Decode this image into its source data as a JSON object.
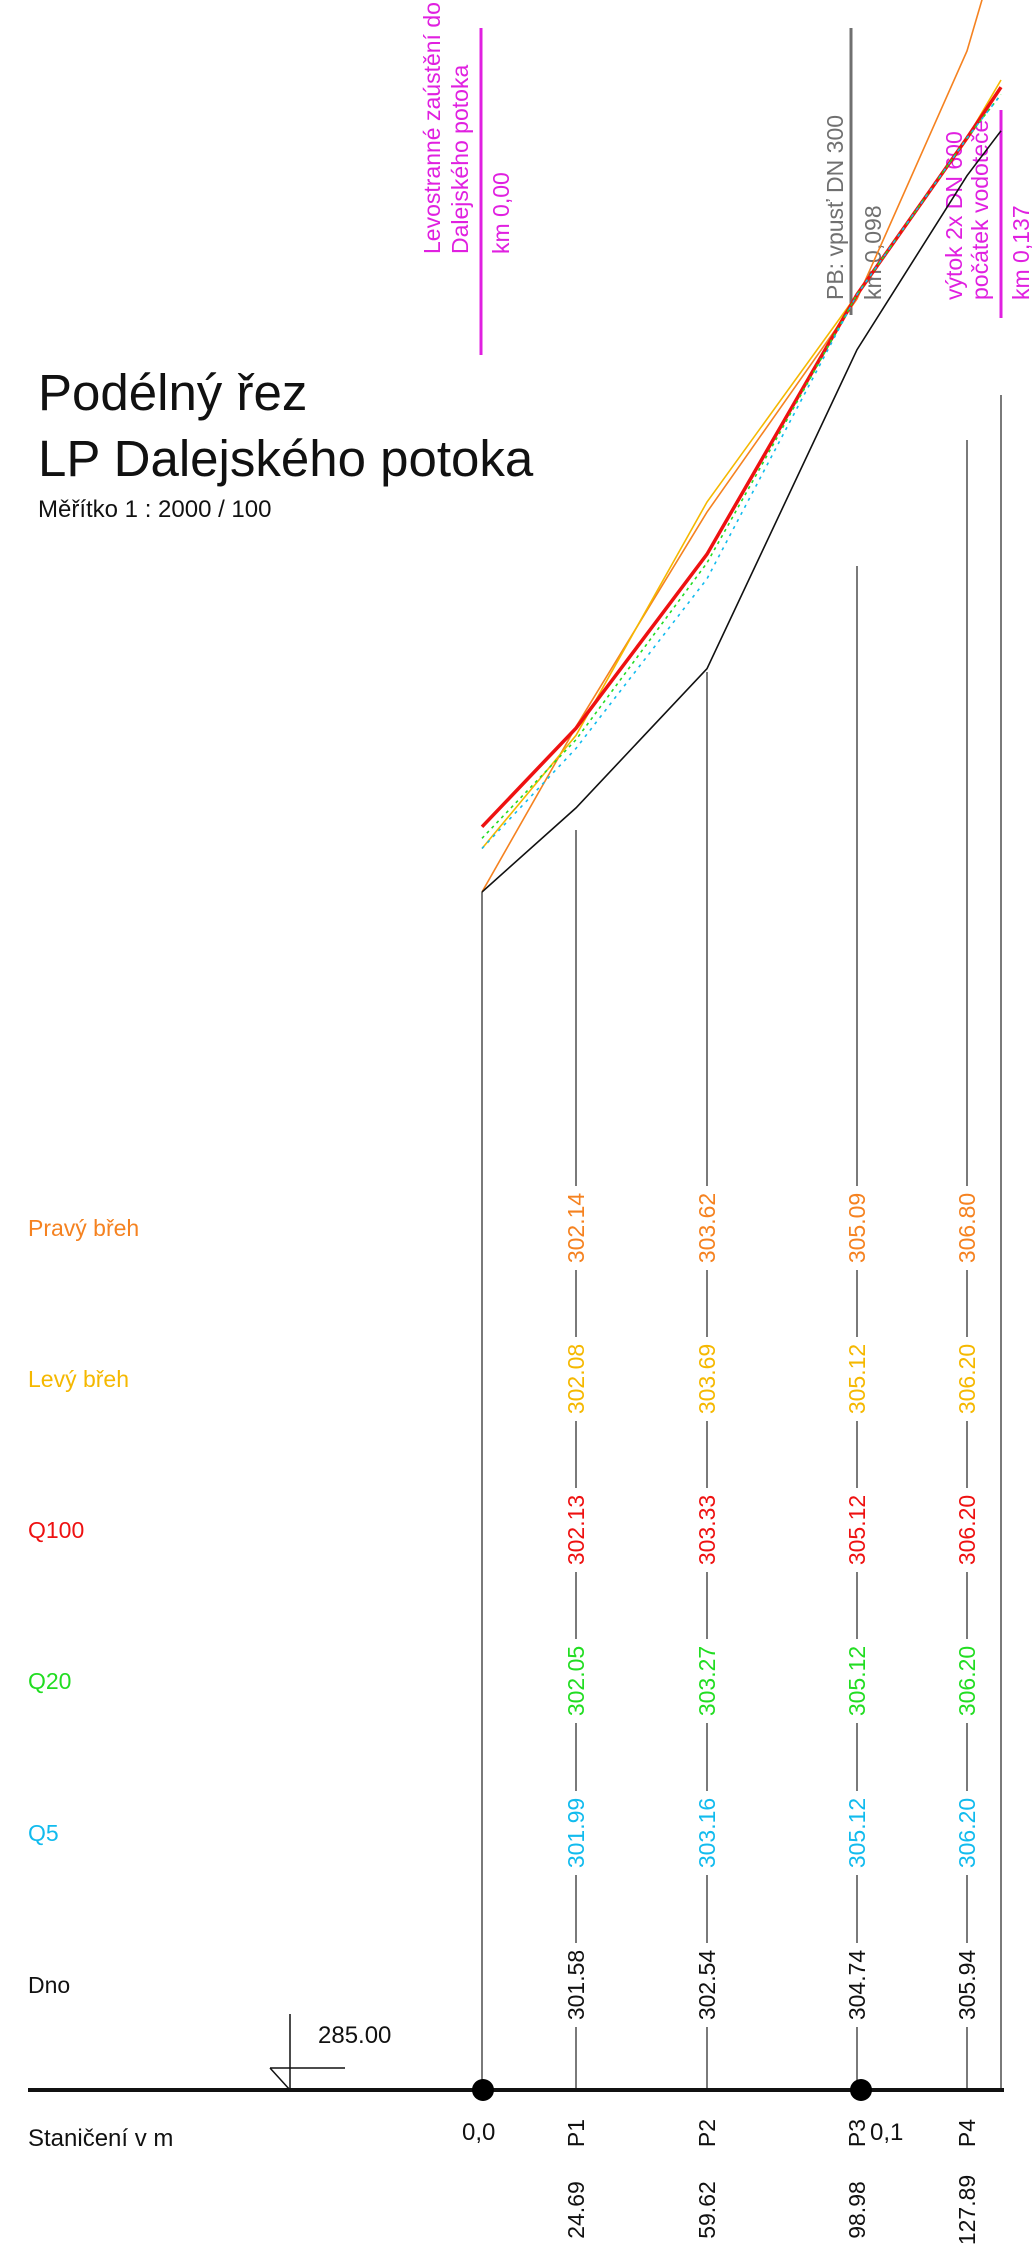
{
  "title": {
    "line1": "Podélný řez",
    "line2": "LP Dalejského potoka",
    "scale": "Měřítko 1 : 2000 / 100"
  },
  "datum": "285.00",
  "station_label": "Staničení v m",
  "stationing": {
    "start": "0,0",
    "end": "0,1"
  },
  "markers": [
    {
      "lines": [
        "Levostranné zaústění do",
        "Dalejského potoka",
        "km 0,00"
      ],
      "color": "#e020e0"
    },
    {
      "lines": [
        "PB: vpusť DN 300",
        "km 0,098"
      ],
      "color": "#707070"
    },
    {
      "lines": [
        "výtok 2x DN 600",
        "počátek vodoteče",
        "km 0,137"
      ],
      "color": "#e020e0"
    }
  ],
  "profiles": [
    {
      "name": "P1",
      "station": "24.69"
    },
    {
      "name": "P2",
      "station": "59.62"
    },
    {
      "name": "P3",
      "station": "98.98"
    },
    {
      "name": "P4",
      "station": "127.89"
    }
  ],
  "rows": [
    {
      "label": "Pravý břeh",
      "color": "#f58220",
      "values": [
        "302.14",
        "303.62",
        "305.09",
        "306.80"
      ]
    },
    {
      "label": "Levý břeh",
      "color": "#f5b800",
      "values": [
        "302.08",
        "303.69",
        "305.12",
        "306.20"
      ]
    },
    {
      "label": "Q100",
      "color": "#ee1111",
      "values": [
        "302.13",
        "303.33",
        "305.12",
        "306.20"
      ]
    },
    {
      "label": "Q20",
      "color": "#22dd22",
      "values": [
        "302.05",
        "303.27",
        "305.12",
        "306.20"
      ]
    },
    {
      "label": "Q5",
      "color": "#11bbee",
      "values": [
        "301.99",
        "303.16",
        "305.12",
        "306.20"
      ]
    },
    {
      "label": "Dno",
      "color": "#111111",
      "values": [
        "301.58",
        "302.54",
        "304.74",
        "305.94"
      ]
    }
  ],
  "chart_data": {
    "type": "line",
    "x": [
      0,
      24.69,
      59.62,
      98.98,
      127.89,
      137
    ],
    "series": [
      {
        "name": "Pravý břeh",
        "color": "#f58220",
        "values": [
          301.0,
          302.14,
          303.62,
          305.09,
          306.8,
          307.6
        ]
      },
      {
        "name": "Levý břeh",
        "color": "#f5b800",
        "values": [
          301.3,
          302.08,
          303.69,
          305.12,
          306.2,
          306.6
        ]
      },
      {
        "name": "Q100",
        "color": "#ee1111",
        "values": [
          301.45,
          302.13,
          303.33,
          305.12,
          306.2,
          306.55
        ]
      },
      {
        "name": "Q20",
        "color": "#22dd22",
        "values": [
          301.37,
          302.05,
          303.27,
          305.12,
          306.2,
          306.5
        ]
      },
      {
        "name": "Q5",
        "color": "#11bbee",
        "values": [
          301.3,
          301.99,
          303.16,
          305.12,
          306.2,
          306.5
        ]
      },
      {
        "name": "Dno",
        "color": "#111111",
        "values": [
          301.0,
          301.58,
          302.54,
          304.74,
          305.94,
          306.25
        ]
      }
    ]
  }
}
